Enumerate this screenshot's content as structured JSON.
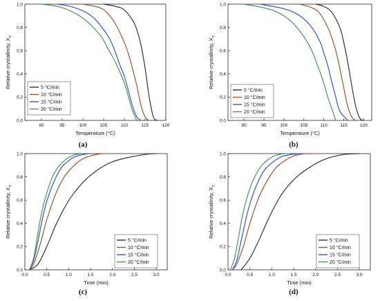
{
  "colors": {
    "5": "#333333",
    "10": "#a0522d",
    "15": "#3a4fd8",
    "20": "#3f9a5a"
  },
  "chart_data": [
    {
      "panel_label": "(a)",
      "type": "line",
      "xlabel": "Temperature (°C)",
      "ylabel": "Relative crystallinity, X",
      "ylabel_sub": "T",
      "xlim": [
        86,
        120
      ],
      "ylim": [
        0,
        1.0
      ],
      "xticks": [
        90,
        95,
        100,
        105,
        110,
        115,
        120
      ],
      "yticks": [
        0.0,
        0.2,
        0.4,
        0.6,
        0.8,
        1.0
      ],
      "legend": "bottom-left",
      "series": [
        {
          "name": "5 °C/min",
          "color_key": "5",
          "x": [
            105,
            108,
            110,
            112,
            113,
            114,
            115,
            116,
            117,
            118
          ],
          "y": [
            1.0,
            0.98,
            0.95,
            0.86,
            0.78,
            0.65,
            0.45,
            0.2,
            0.03,
            0.0
          ]
        },
        {
          "name": "10 °C/min",
          "color_key": "10",
          "x": [
            100,
            104,
            106,
            108,
            110,
            111,
            112,
            113,
            114,
            115,
            116
          ],
          "y": [
            1.0,
            0.97,
            0.92,
            0.82,
            0.67,
            0.57,
            0.44,
            0.3,
            0.13,
            0.03,
            0.0
          ]
        },
        {
          "name": "15 °C/min",
          "color_key": "15",
          "x": [
            94,
            98,
            102,
            105,
            107,
            109,
            110,
            111,
            112,
            113,
            114
          ],
          "y": [
            1.0,
            0.97,
            0.9,
            0.78,
            0.66,
            0.47,
            0.38,
            0.25,
            0.12,
            0.03,
            0.0
          ]
        },
        {
          "name": "20 °C/min",
          "color_key": "20",
          "x": [
            90,
            95,
            100,
            104,
            106,
            108,
            110,
            111,
            112,
            113
          ],
          "y": [
            1.0,
            0.97,
            0.88,
            0.74,
            0.62,
            0.49,
            0.32,
            0.2,
            0.08,
            0.0
          ]
        }
      ]
    },
    {
      "panel_label": "(b)",
      "type": "line",
      "xlabel": "Temperature (°C)",
      "ylabel": "Relative crystallinity, X",
      "ylabel_sub": "T",
      "xlim": [
        86,
        122
      ],
      "ylim": [
        0,
        1.0
      ],
      "xticks": [
        90,
        95,
        100,
        105,
        110,
        115,
        120
      ],
      "yticks": [
        0.0,
        0.2,
        0.4,
        0.6,
        0.8,
        1.0
      ],
      "legend": "bottom-left",
      "series": [
        {
          "name": "5 °C/min",
          "color_key": "5",
          "x": [
            108,
            110,
            112,
            114,
            115,
            116,
            117,
            118,
            119,
            120
          ],
          "y": [
            1.0,
            0.98,
            0.93,
            0.8,
            0.67,
            0.5,
            0.3,
            0.12,
            0.02,
            0.0
          ]
        },
        {
          "name": "10 °C/min",
          "color_key": "10",
          "x": [
            104,
            107,
            109,
            111,
            112,
            113,
            114,
            115,
            116,
            117,
            118
          ],
          "y": [
            1.0,
            0.97,
            0.92,
            0.8,
            0.71,
            0.6,
            0.45,
            0.28,
            0.12,
            0.03,
            0.0
          ]
        },
        {
          "name": "15 °C/min",
          "color_key": "15",
          "x": [
            94,
            100,
            104,
            107,
            109,
            110,
            111,
            112,
            113,
            114,
            116
          ],
          "y": [
            1.0,
            0.96,
            0.9,
            0.8,
            0.68,
            0.58,
            0.47,
            0.33,
            0.2,
            0.08,
            0.0
          ]
        },
        {
          "name": "20 °C/min",
          "color_key": "20",
          "x": [
            90,
            96,
            100,
            103,
            105,
            107,
            109,
            110,
            111,
            112,
            113
          ],
          "y": [
            1.0,
            0.96,
            0.9,
            0.81,
            0.72,
            0.6,
            0.42,
            0.32,
            0.2,
            0.1,
            0.0
          ]
        }
      ]
    },
    {
      "panel_label": "(c)",
      "type": "line",
      "xlabel": "Time (min)",
      "ylabel": "Relative crystallinity, X",
      "ylabel_sub": "T",
      "xlim": [
        0,
        3.25
      ],
      "ylim": [
        0,
        1.0
      ],
      "xticks": [
        0.0,
        0.5,
        1.0,
        1.5,
        2.0,
        2.5,
        3.0
      ],
      "yticks": [
        0.0,
        0.2,
        0.4,
        0.6,
        0.8,
        1.0
      ],
      "legend": "bottom-right",
      "series": [
        {
          "name": "5 °C/min",
          "color_key": "5",
          "x": [
            0.1,
            0.3,
            0.5,
            0.7,
            0.9,
            1.1,
            1.4,
            1.7,
            2.0,
            2.4,
            2.8,
            3.0
          ],
          "y": [
            0.0,
            0.05,
            0.2,
            0.38,
            0.53,
            0.65,
            0.78,
            0.87,
            0.93,
            0.97,
            0.995,
            1.0
          ]
        },
        {
          "name": "10 °C/min",
          "color_key": "10",
          "x": [
            0.1,
            0.2,
            0.35,
            0.5,
            0.7,
            0.9,
            1.1,
            1.3,
            1.5,
            1.7,
            1.8
          ],
          "y": [
            0.0,
            0.05,
            0.22,
            0.43,
            0.65,
            0.8,
            0.89,
            0.95,
            0.98,
            0.997,
            1.0
          ]
        },
        {
          "name": "15 °C/min",
          "color_key": "15",
          "x": [
            0.1,
            0.2,
            0.3,
            0.45,
            0.6,
            0.8,
            1.0,
            1.2,
            1.4,
            1.5
          ],
          "y": [
            0.0,
            0.08,
            0.25,
            0.52,
            0.7,
            0.86,
            0.94,
            0.98,
            0.997,
            1.0
          ]
        },
        {
          "name": "20 °C/min",
          "color_key": "20",
          "x": [
            0.1,
            0.2,
            0.3,
            0.4,
            0.55,
            0.7,
            0.9,
            1.1,
            1.3
          ],
          "y": [
            0.0,
            0.1,
            0.32,
            0.52,
            0.72,
            0.85,
            0.94,
            0.985,
            1.0
          ]
        }
      ]
    },
    {
      "panel_label": "(d)",
      "type": "line",
      "xlabel": "Time (min)",
      "ylabel": "Relative crystallinity, X",
      "ylabel_sub": "T",
      "xlim": [
        0,
        3.25
      ],
      "ylim": [
        0,
        1.0
      ],
      "xticks": [
        0.0,
        0.5,
        1.0,
        1.5,
        2.0,
        2.5,
        3.0
      ],
      "yticks": [
        0.0,
        0.2,
        0.4,
        0.6,
        0.8,
        1.0
      ],
      "legend": "bottom-right",
      "series": [
        {
          "name": "5 °C/min",
          "color_key": "5",
          "x": [
            0.3,
            0.5,
            0.7,
            0.9,
            1.1,
            1.3,
            1.6,
            1.9,
            2.2,
            2.6,
            3.0
          ],
          "y": [
            0.0,
            0.1,
            0.25,
            0.42,
            0.57,
            0.69,
            0.81,
            0.89,
            0.95,
            0.99,
            1.0
          ]
        },
        {
          "name": "10 °C/min",
          "color_key": "10",
          "x": [
            0.1,
            0.2,
            0.35,
            0.5,
            0.7,
            0.9,
            1.1,
            1.3,
            1.5,
            1.7,
            1.9
          ],
          "y": [
            0.0,
            0.05,
            0.2,
            0.4,
            0.62,
            0.77,
            0.88,
            0.94,
            0.98,
            0.997,
            1.0
          ]
        },
        {
          "name": "15 °C/min",
          "color_key": "15",
          "x": [
            0.1,
            0.2,
            0.3,
            0.45,
            0.6,
            0.8,
            1.0,
            1.2,
            1.4,
            1.6,
            1.7
          ],
          "y": [
            0.0,
            0.08,
            0.25,
            0.5,
            0.68,
            0.84,
            0.92,
            0.97,
            0.99,
            0.999,
            1.0
          ]
        },
        {
          "name": "20 °C/min",
          "color_key": "20",
          "x": [
            0.05,
            0.15,
            0.25,
            0.35,
            0.5,
            0.65,
            0.8,
            1.0,
            1.2,
            1.4
          ],
          "y": [
            0.0,
            0.1,
            0.3,
            0.5,
            0.7,
            0.83,
            0.91,
            0.97,
            0.995,
            1.0
          ]
        }
      ]
    }
  ]
}
